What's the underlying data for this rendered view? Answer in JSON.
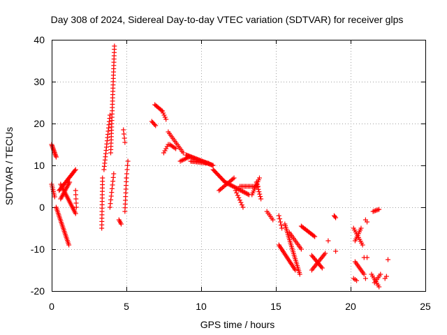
{
  "chart_data": {
    "type": "scatter",
    "title": "Day 308 of 2024, Sidereal Day-to-day VTEC variation (SDTVAR) for receiver glps",
    "xlabel": "GPS time / hours",
    "ylabel": "SDTVAR / TECUs",
    "xlim": [
      0,
      25
    ],
    "ylim": [
      -20,
      40
    ],
    "xticks": [
      0,
      5,
      10,
      15,
      20,
      25
    ],
    "yticks": [
      -20,
      -10,
      0,
      10,
      20,
      30,
      40
    ],
    "grid": true,
    "marker": "plus",
    "color": "#ff0000",
    "segments": [
      {
        "x0": 0.0,
        "y0": 15,
        "x1": 0.3,
        "y1": 12,
        "n": 12
      },
      {
        "x0": 0.0,
        "y0": 5.5,
        "x1": 0.2,
        "y1": 2.5,
        "n": 8
      },
      {
        "x0": 0.3,
        "y0": 0,
        "x1": 1.15,
        "y1": -9,
        "n": 26
      },
      {
        "x0": 0.5,
        "y0": 4,
        "x1": 1.6,
        "y1": 9,
        "n": 22
      },
      {
        "x0": 0.6,
        "y0": 5.5,
        "x1": 1.6,
        "y1": -1.5,
        "n": 22
      },
      {
        "x0": 0.6,
        "y0": 2,
        "x1": 1.2,
        "y1": 6,
        "n": 14
      },
      {
        "x0": 1.6,
        "y0": 4,
        "x1": 1.65,
        "y1": 0,
        "n": 5
      },
      {
        "x0": 3.35,
        "y0": -5,
        "x1": 3.4,
        "y1": 7,
        "n": 16
      },
      {
        "x0": 3.5,
        "y0": 9,
        "x1": 3.9,
        "y1": 22,
        "n": 18
      },
      {
        "x0": 3.9,
        "y0": 0,
        "x1": 4.15,
        "y1": 8,
        "n": 10
      },
      {
        "x0": 3.95,
        "y0": 13,
        "x1": 4.2,
        "y1": 38.5,
        "n": 34
      },
      {
        "x0": 4.5,
        "y0": -3,
        "x1": 4.65,
        "y1": -4,
        "n": 4
      },
      {
        "x0": 4.8,
        "y0": 18.5,
        "x1": 4.9,
        "y1": 15.5,
        "n": 4
      },
      {
        "x0": 4.9,
        "y0": -1,
        "x1": 5.0,
        "y1": 7,
        "n": 10
      },
      {
        "x0": 5.0,
        "y0": 7,
        "x1": 5.1,
        "y1": 11,
        "n": 5
      },
      {
        "x0": 6.7,
        "y0": 20.5,
        "x1": 6.95,
        "y1": 19.5,
        "n": 5
      },
      {
        "x0": 6.9,
        "y0": 24.5,
        "x1": 7.4,
        "y1": 23,
        "n": 8
      },
      {
        "x0": 7.4,
        "y0": 23,
        "x1": 7.65,
        "y1": 21,
        "n": 5
      },
      {
        "x0": 7.5,
        "y0": 13,
        "x1": 7.8,
        "y1": 15,
        "n": 5
      },
      {
        "x0": 7.8,
        "y0": 18,
        "x1": 8.8,
        "y1": 13,
        "n": 14
      },
      {
        "x0": 7.9,
        "y0": 15,
        "x1": 8.3,
        "y1": 14,
        "n": 6
      },
      {
        "x0": 8.6,
        "y0": 11,
        "x1": 9.2,
        "y1": 12,
        "n": 8
      },
      {
        "x0": 9.0,
        "y0": 12.5,
        "x1": 10.8,
        "y1": 10,
        "n": 30
      },
      {
        "x0": 9.3,
        "y0": 11,
        "x1": 10.5,
        "y1": 10.5,
        "n": 16
      },
      {
        "x0": 10.8,
        "y0": 9,
        "x1": 11.6,
        "y1": 6,
        "n": 14
      },
      {
        "x0": 11.2,
        "y0": 4,
        "x1": 12.2,
        "y1": 7,
        "n": 14
      },
      {
        "x0": 11.6,
        "y0": 6,
        "x1": 13.2,
        "y1": 3,
        "n": 24
      },
      {
        "x0": 12.3,
        "y0": 4,
        "x1": 12.8,
        "y1": 0,
        "n": 8
      },
      {
        "x0": 12.6,
        "y0": 5,
        "x1": 13.8,
        "y1": 5,
        "n": 14
      },
      {
        "x0": 13.4,
        "y0": 3,
        "x1": 13.9,
        "y1": 7,
        "n": 10
      },
      {
        "x0": 13.7,
        "y0": 6,
        "x1": 14.0,
        "y1": 2,
        "n": 8
      },
      {
        "x0": 14.4,
        "y0": -1,
        "x1": 14.8,
        "y1": -3,
        "n": 6
      },
      {
        "x0": 15.2,
        "y0": -2,
        "x1": 15.4,
        "y1": -5,
        "n": 5
      },
      {
        "x0": 15.2,
        "y0": -9,
        "x1": 16.3,
        "y1": -15,
        "n": 20
      },
      {
        "x0": 15.6,
        "y0": -4,
        "x1": 16.6,
        "y1": -16,
        "n": 30
      },
      {
        "x0": 15.9,
        "y0": -6,
        "x1": 16.7,
        "y1": -10,
        "n": 12
      },
      {
        "x0": 16.7,
        "y0": -4.5,
        "x1": 17.6,
        "y1": -7,
        "n": 14
      },
      {
        "x0": 17.4,
        "y0": -15,
        "x1": 18.3,
        "y1": -11,
        "n": 14
      },
      {
        "x0": 17.4,
        "y0": -11.5,
        "x1": 18.1,
        "y1": -14.5,
        "n": 12
      },
      {
        "x0": 18.5,
        "y0": -8,
        "x1": 18.5,
        "y1": -8,
        "n": 1
      },
      {
        "x0": 18.9,
        "y0": -2,
        "x1": 19.0,
        "y1": -2.5,
        "n": 3
      },
      {
        "x0": 19.0,
        "y0": -10.5,
        "x1": 19.0,
        "y1": -10.5,
        "n": 1
      },
      {
        "x0": 20.2,
        "y0": -5,
        "x1": 20.8,
        "y1": -9,
        "n": 10
      },
      {
        "x0": 20.3,
        "y0": -8,
        "x1": 20.7,
        "y1": -5,
        "n": 8
      },
      {
        "x0": 20.3,
        "y0": -13,
        "x1": 20.9,
        "y1": -16,
        "n": 10
      },
      {
        "x0": 20.2,
        "y0": -17,
        "x1": 20.4,
        "y1": -17.5,
        "n": 3
      },
      {
        "x0": 21.0,
        "y0": -3,
        "x1": 21.1,
        "y1": -3.5,
        "n": 2
      },
      {
        "x0": 20.9,
        "y0": -12,
        "x1": 21.1,
        "y1": -12,
        "n": 2
      },
      {
        "x0": 21.0,
        "y0": -17,
        "x1": 21.0,
        "y1": -17,
        "n": 1
      },
      {
        "x0": 21.5,
        "y0": -1,
        "x1": 21.9,
        "y1": -0.5,
        "n": 6
      },
      {
        "x0": 21.4,
        "y0": -16,
        "x1": 21.9,
        "y1": -19,
        "n": 8
      },
      {
        "x0": 21.6,
        "y0": -18,
        "x1": 22.0,
        "y1": -16,
        "n": 6
      },
      {
        "x0": 22.3,
        "y0": -17,
        "x1": 22.4,
        "y1": -16.5,
        "n": 2
      },
      {
        "x0": 22.5,
        "y0": -12.5,
        "x1": 22.5,
        "y1": -12.5,
        "n": 1
      }
    ]
  }
}
